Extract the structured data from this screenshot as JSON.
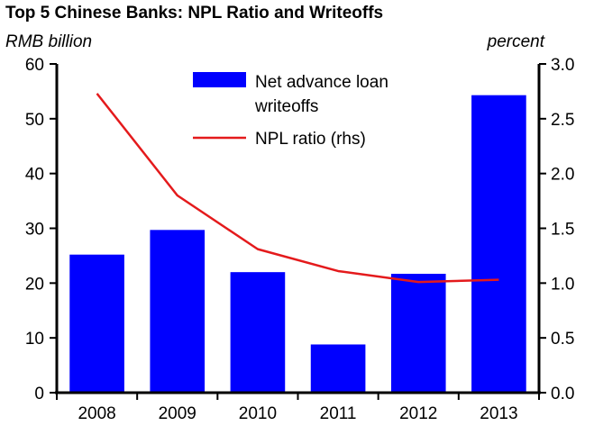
{
  "chart_data": {
    "type": "bar",
    "title": "Top 5 Chinese Banks: NPL Ratio and Writeoffs",
    "left_axis_label": "RMB billion",
    "right_axis_label": "percent",
    "categories": [
      "2008",
      "2009",
      "2010",
      "2011",
      "2012",
      "2013"
    ],
    "ylim_left": [
      0,
      60
    ],
    "yticks_left": [
      "0",
      "10",
      "20",
      "30",
      "40",
      "50",
      "60"
    ],
    "ylim_right": [
      0,
      3
    ],
    "yticks_right": [
      "0.0",
      "0.5",
      "1.0",
      "1.5",
      "2.0",
      "2.5",
      "3.0"
    ],
    "grid": false,
    "legend_position": "top-center",
    "series": [
      {
        "name": "Net advance loan writeoffs",
        "name_lines": [
          "Net advance loan",
          "writeoffs"
        ],
        "kind": "bar",
        "axis": "left",
        "color": "#0000ff",
        "values": [
          25.2,
          29.7,
          22.0,
          8.8,
          21.7,
          54.3
        ]
      },
      {
        "name": "NPL ratio (rhs)",
        "kind": "line",
        "axis": "right",
        "color": "#e41a1c",
        "values": [
          2.73,
          1.8,
          1.31,
          1.11,
          1.01,
          1.03
        ]
      }
    ]
  }
}
